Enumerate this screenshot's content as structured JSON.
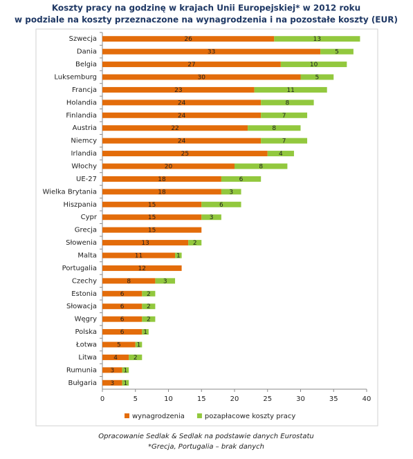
{
  "chart_data": {
    "type": "stacked-barh",
    "title": "Koszty pracy na godzinę w krajach Unii Europejskiej* w 2012 roku",
    "subtitle": "w podziale na koszty przeznaczone na wynagrodzenia i na pozostałe koszty (EUR)",
    "categories": [
      "Szwecja",
      "Dania",
      "Belgia",
      "Luksemburg",
      "Francja",
      "Holandia",
      "Finlandia",
      "Austria",
      "Niemcy",
      "Irlandia",
      "Włochy",
      "UE-27",
      "Wielka Brytania",
      "Hiszpania",
      "Cypr",
      "Grecja",
      "Słowenia",
      "Malta",
      "Portugalia",
      "Czechy",
      "Estonia",
      "Słowacja",
      "Węgry",
      "Polska",
      "Łotwa",
      "Litwa",
      "Rumunia",
      "Bułgaria"
    ],
    "series": [
      {
        "name": "wynagrodzenia",
        "color": "#e36c0a",
        "values": [
          26,
          33,
          27,
          30,
          23,
          24,
          24,
          22,
          24,
          25,
          20,
          18,
          18,
          15,
          15,
          15,
          13,
          11,
          12,
          8,
          6,
          6,
          6,
          6,
          5,
          4,
          3,
          3
        ]
      },
      {
        "name": "pozapłacowe koszty pracy",
        "color": "#92c83e",
        "values": [
          13,
          5,
          10,
          5,
          11,
          8,
          7,
          8,
          7,
          4,
          8,
          6,
          3,
          6,
          3,
          null,
          2,
          1,
          null,
          3,
          2,
          2,
          2,
          1,
          1,
          2,
          1,
          1
        ]
      }
    ],
    "xlim": [
      0,
      40
    ],
    "xticks": [
      0,
      5,
      10,
      15,
      20,
      25,
      30,
      35,
      40
    ],
    "legend": "bottom",
    "source": "Opracowanie Sedlak & Sedlak na podstawie danych Eurostatu",
    "note": "*Grecja, Portugalia – brak danych"
  }
}
